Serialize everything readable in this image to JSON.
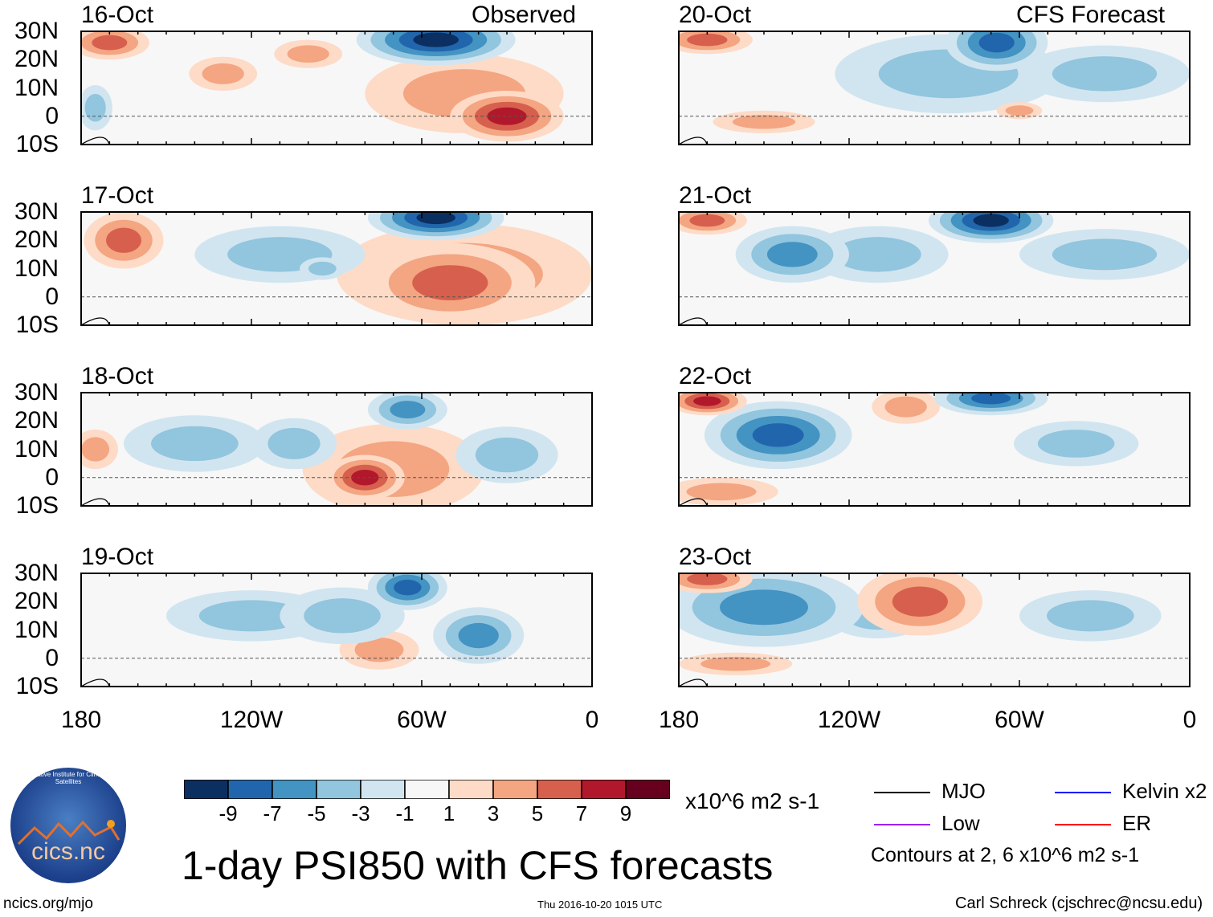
{
  "chart_data": {
    "type": "heatmap",
    "title": "1-day PSI850 with CFS forecasts",
    "units": "x10^6 m2 s-1",
    "lon_range": [
      -180,
      0
    ],
    "lat_range": [
      -10,
      30
    ],
    "lat_ticks": [
      "30N",
      "20N",
      "10N",
      "0",
      "10S"
    ],
    "lat_tick_values": [
      30,
      20,
      10,
      0,
      -10
    ],
    "lon_ticks": [
      "180",
      "120W",
      "60W",
      "0"
    ],
    "lon_tick_values": [
      -180,
      -120,
      -60,
      0
    ],
    "column_titles": {
      "left": "Observed",
      "right": "CFS Forecast"
    },
    "colorbar": {
      "labels": [
        "-9",
        "-7",
        "-5",
        "-3",
        "-1",
        "1",
        "3",
        "5",
        "7",
        "9"
      ],
      "colors": [
        "#0b2f60",
        "#2166ac",
        "#4393c3",
        "#92c5de",
        "#d1e5f0",
        "#f7f7f7",
        "#fddbc7",
        "#f4a582",
        "#d6604d",
        "#b2182b",
        "#67001f"
      ]
    },
    "legend": [
      {
        "label": "MJO",
        "color": "#000000"
      },
      {
        "label": "Kelvin x2",
        "color": "#0000ff"
      },
      {
        "label": "Low",
        "color": "#a020f0"
      },
      {
        "label": "ER",
        "color": "#ff0000"
      }
    ],
    "contour_note": "Contours at 2, 6 x10^6 m2 s-1",
    "panels": [
      {
        "date": "16-Oct",
        "column": "left",
        "row": 0,
        "anomalies": [
          [
            -55,
            27,
            -9,
            28,
            9
          ],
          [
            -170,
            26,
            5,
            14,
            6
          ],
          [
            -130,
            15,
            3,
            12,
            6
          ],
          [
            -30,
            0,
            7,
            20,
            9
          ],
          [
            -45,
            8,
            3,
            35,
            14
          ],
          [
            -175,
            3,
            -3,
            6,
            8
          ],
          [
            -100,
            22,
            3,
            12,
            5
          ]
        ]
      },
      {
        "date": "17-Oct",
        "column": "left",
        "row": 1,
        "anomalies": [
          [
            -55,
            28,
            -9,
            24,
            8
          ],
          [
            -165,
            20,
            5,
            14,
            10
          ],
          [
            -50,
            5,
            5,
            30,
            14
          ],
          [
            -45,
            8,
            3,
            45,
            18
          ],
          [
            -110,
            15,
            -3,
            30,
            10
          ],
          [
            -95,
            10,
            -3,
            8,
            4
          ]
        ]
      },
      {
        "date": "18-Oct",
        "column": "left",
        "row": 2,
        "anomalies": [
          [
            -65,
            24,
            -5,
            14,
            7
          ],
          [
            -80,
            0,
            7,
            14,
            8
          ],
          [
            -70,
            3,
            3,
            32,
            16
          ],
          [
            -140,
            12,
            -3,
            25,
            10
          ],
          [
            -105,
            12,
            -3,
            15,
            9
          ],
          [
            -30,
            8,
            -3,
            18,
            10
          ],
          [
            -175,
            10,
            3,
            8,
            7
          ]
        ]
      },
      {
        "date": "19-Oct",
        "column": "left",
        "row": 3,
        "anomalies": [
          [
            -65,
            25,
            -7,
            14,
            8
          ],
          [
            -40,
            8,
            -5,
            16,
            10
          ],
          [
            -120,
            15,
            -3,
            30,
            9
          ],
          [
            -75,
            3,
            3,
            14,
            7
          ],
          [
            -88,
            15,
            -3,
            22,
            10
          ]
        ]
      },
      {
        "date": "20-Oct",
        "column": "right",
        "row": 0,
        "anomalies": [
          [
            -68,
            26,
            -7,
            18,
            10
          ],
          [
            -85,
            15,
            -3,
            40,
            14
          ],
          [
            -170,
            27,
            5,
            16,
            5
          ],
          [
            -30,
            15,
            -3,
            30,
            10
          ],
          [
            -150,
            -2,
            3,
            18,
            4
          ],
          [
            -60,
            2,
            3,
            8,
            3
          ]
        ]
      },
      {
        "date": "21-Oct",
        "column": "right",
        "row": 1,
        "anomalies": [
          [
            -70,
            27,
            -9,
            22,
            8
          ],
          [
            -140,
            15,
            -5,
            20,
            10
          ],
          [
            -170,
            27,
            5,
            14,
            5
          ],
          [
            -110,
            15,
            -3,
            25,
            10
          ],
          [
            -30,
            15,
            -3,
            30,
            9
          ]
        ]
      },
      {
        "date": "22-Oct",
        "column": "right",
        "row": 2,
        "anomalies": [
          [
            -145,
            15,
            -7,
            26,
            12
          ],
          [
            -70,
            28,
            -7,
            20,
            6
          ],
          [
            -170,
            27,
            7,
            14,
            5
          ],
          [
            -100,
            25,
            3,
            12,
            6
          ],
          [
            -40,
            12,
            -3,
            22,
            8
          ],
          [
            -165,
            -5,
            3,
            20,
            5
          ]
        ]
      },
      {
        "date": "23-Oct",
        "column": "right",
        "row": 3,
        "anomalies": [
          [
            -150,
            18,
            -5,
            35,
            14
          ],
          [
            -95,
            20,
            5,
            22,
            12
          ],
          [
            -35,
            15,
            -3,
            25,
            9
          ],
          [
            -170,
            28,
            5,
            16,
            5
          ],
          [
            -110,
            15,
            -3,
            18,
            8
          ],
          [
            -160,
            -2,
            3,
            20,
            4
          ]
        ]
      }
    ]
  },
  "footer": {
    "title": "1-day PSI850 with CFS forecasts",
    "units": "x10^6 m2 s-1",
    "timestamp": "Thu 2016-10-20 1015 UTC",
    "url": "ncics.org/mjo",
    "author": "Carl Schreck (cjschrec@ncsu.edu)",
    "logo_text": "cics.nc",
    "logo_ring": "Cooperative Institute for Climate and Satellites"
  }
}
